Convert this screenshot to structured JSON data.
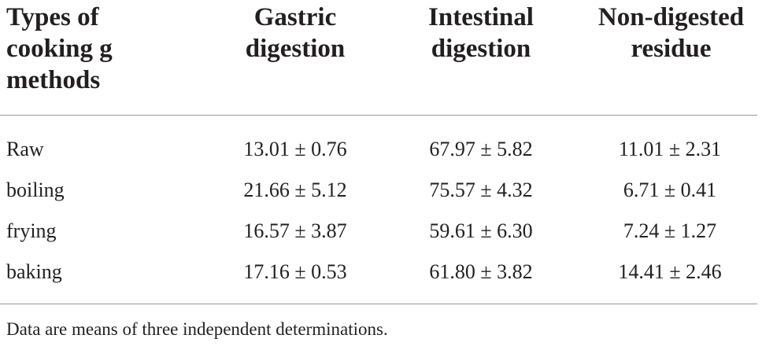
{
  "table": {
    "headers": [
      "Types of cooking g methods",
      "Gastric digestion",
      "Intestinal digestion",
      "Non-digested residue"
    ],
    "rows": [
      [
        "Raw",
        "13.01 ± 0.76",
        "67.97 ± 5.82",
        "11.01 ± 2.31"
      ],
      [
        "boiling",
        "21.66 ± 5.12",
        "75.57 ± 4.32",
        "6.71 ± 0.41"
      ],
      [
        "frying",
        "16.57 ± 3.87",
        "59.61 ± 6.30",
        "7.24 ± 1.27"
      ],
      [
        "baking",
        "17.16 ± 0.53",
        "61.80 ± 3.82",
        "14.41 ± 2.46"
      ]
    ],
    "footnote": "Data are means of three independent determinations."
  }
}
